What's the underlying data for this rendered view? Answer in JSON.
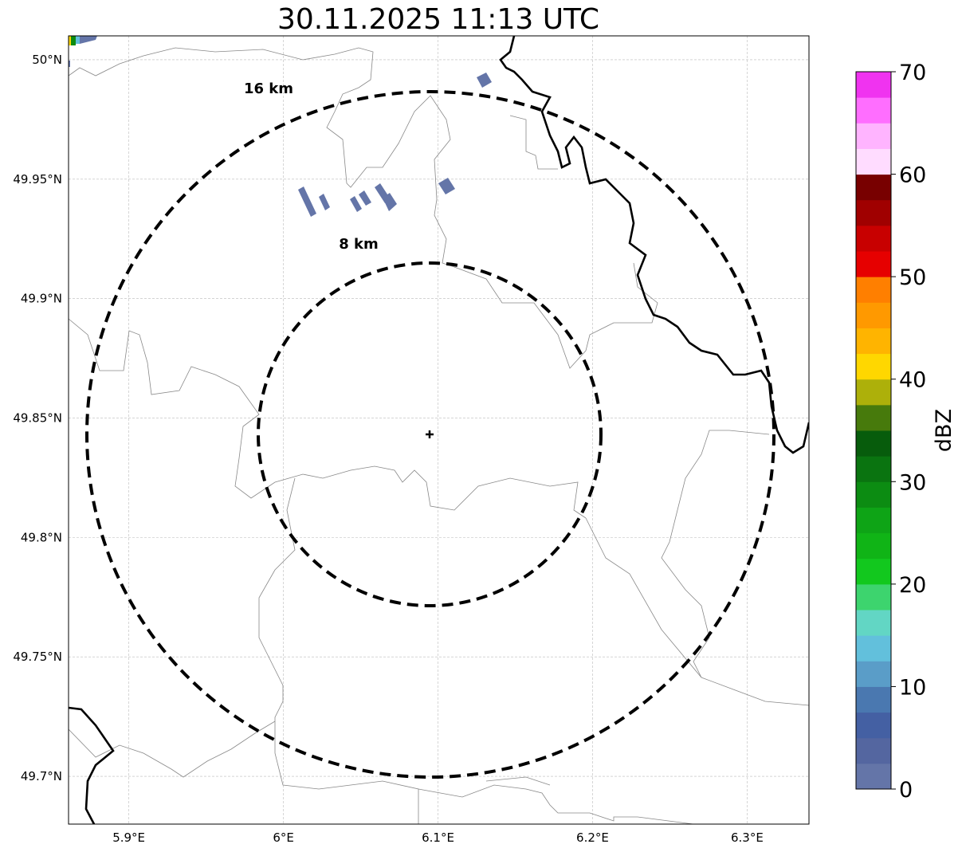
{
  "title": "30.11.2025 11:13 UTC",
  "map": {
    "lon_range": [
      5.861,
      6.34
    ],
    "lat_range": [
      49.68,
      50.01
    ],
    "lon_ticks": [
      {
        "v": 5.9,
        "label": "5.9°E"
      },
      {
        "v": 6.0,
        "label": "6°E"
      },
      {
        "v": 6.1,
        "label": "6.1°E"
      },
      {
        "v": 6.2,
        "label": "6.2°E"
      },
      {
        "v": 6.3,
        "label": "6.3°E"
      }
    ],
    "lat_ticks": [
      {
        "v": 50.0,
        "label": "50°N"
      },
      {
        "v": 49.95,
        "label": "49.95°N"
      },
      {
        "v": 49.9,
        "label": "49.9°N"
      },
      {
        "v": 49.85,
        "label": "49.85°N"
      },
      {
        "v": 49.8,
        "label": "49.8°N"
      },
      {
        "v": 49.75,
        "label": "49.75°N"
      },
      {
        "v": 49.7,
        "label": "49.7°N"
      }
    ],
    "range_rings": [
      {
        "label": "16 km",
        "km": 16
      },
      {
        "label": "8 km",
        "km": 8
      }
    ],
    "radar_marker": "plus-icon"
  },
  "colorbar": {
    "label": "dBZ",
    "min": 0,
    "max": 70,
    "ticks": [
      "0",
      "10",
      "20",
      "30",
      "40",
      "50",
      "60",
      "70"
    ],
    "colors": [
      "#6475a8",
      "#5466a0",
      "#4460a3",
      "#4a78b0",
      "#5a9dc8",
      "#62c0dc",
      "#62d6c4",
      "#3dd46e",
      "#12c81e",
      "#10b416",
      "#0ea416",
      "#0c8c12",
      "#0a7410",
      "#075c0c",
      "#477a0c",
      "#adb00a",
      "#ffd700",
      "#ffb400",
      "#ff9900",
      "#ff7f00",
      "#e60000",
      "#c80000",
      "#a00000",
      "#780000",
      "#ffdcff",
      "#ffb4ff",
      "#ff6eff",
      "#f033f0"
    ]
  }
}
